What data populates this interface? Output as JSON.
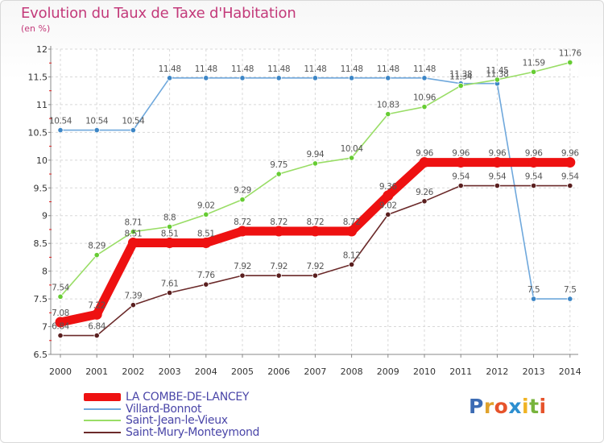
{
  "title": "Evolution du Taux de Taxe d'Habitation",
  "unit_label": "(en %)",
  "brand": [
    "P",
    "r",
    "o",
    "x",
    "i",
    "t",
    "i"
  ],
  "chart_data": {
    "type": "line",
    "title": "Evolution du Taux de Taxe d'Habitation",
    "ylabel": "(en %)",
    "xlabel": "",
    "x": [
      "2000",
      "2001",
      "2002",
      "2003",
      "2004",
      "2005",
      "2006",
      "2007",
      "2008",
      "2009",
      "2010",
      "2011",
      "2012",
      "2013",
      "2014"
    ],
    "y_ticks": [
      "6.5",
      "7",
      "7.5",
      "8",
      "8.5",
      "9",
      "9.5",
      "10",
      "10.5",
      "11",
      "11.5",
      "12"
    ],
    "ylim": [
      6.5,
      12
    ],
    "grid": true,
    "legend_position": "bottom-left",
    "series": [
      {
        "name": "LA COMBE-DE-LANCEY",
        "color": "#ee1111",
        "values": [
          7.08,
          7.22,
          8.51,
          8.51,
          8.51,
          8.72,
          8.72,
          8.72,
          8.72,
          9.36,
          9.96,
          9.96,
          9.96,
          9.96,
          9.96
        ],
        "labels": [
          "7.08",
          "7.22",
          "8.51",
          "8.51",
          "8.51",
          "8.72",
          "8.72",
          "8.72",
          "8.72",
          "9.36",
          "9.96",
          "9.96",
          "9.96",
          "9.96",
          "9.96"
        ]
      },
      {
        "name": "Villard-Bonnot",
        "color": "#6fa8dc",
        "values": [
          10.54,
          10.54,
          10.54,
          11.48,
          11.48,
          11.48,
          11.48,
          11.48,
          11.48,
          11.48,
          11.48,
          11.38,
          11.38,
          7.5,
          7.5
        ],
        "labels": [
          "10.54",
          "10.54",
          "10.54",
          "11.48",
          "11.48",
          "11.48",
          "11.48",
          "11.48",
          "11.48",
          "11.48",
          "11.48",
          "11.38",
          "11.38",
          "7.5",
          "7.5"
        ]
      },
      {
        "name": "Saint-Jean-le-Vieux",
        "color": "#99dd66",
        "values": [
          7.54,
          8.29,
          8.71,
          8.8,
          9.02,
          9.29,
          9.75,
          9.94,
          10.04,
          10.83,
          10.96,
          11.34,
          11.45,
          11.59,
          11.76
        ],
        "labels": [
          "7.54",
          "8.29",
          "8.71",
          "8.8",
          "9.02",
          "9.29",
          "9.75",
          "9.94",
          "10.04",
          "10.83",
          "10.96",
          "11.34",
          "11.45",
          "11.59",
          "11.76"
        ]
      },
      {
        "name": "Saint-Mury-Monteymond",
        "color": "#6b2a2a",
        "values": [
          6.84,
          6.84,
          7.39,
          7.61,
          7.76,
          7.92,
          7.92,
          7.92,
          8.12,
          9.02,
          9.26,
          9.54,
          9.54,
          9.54,
          9.54
        ],
        "labels": [
          "6.84",
          "6.84",
          "7.39",
          "7.61",
          "7.76",
          "7.92",
          "7.92",
          "7.92",
          "8.12",
          "9.02",
          "9.26",
          "9.54",
          "9.54",
          "9.54",
          "9.54"
        ]
      }
    ]
  }
}
